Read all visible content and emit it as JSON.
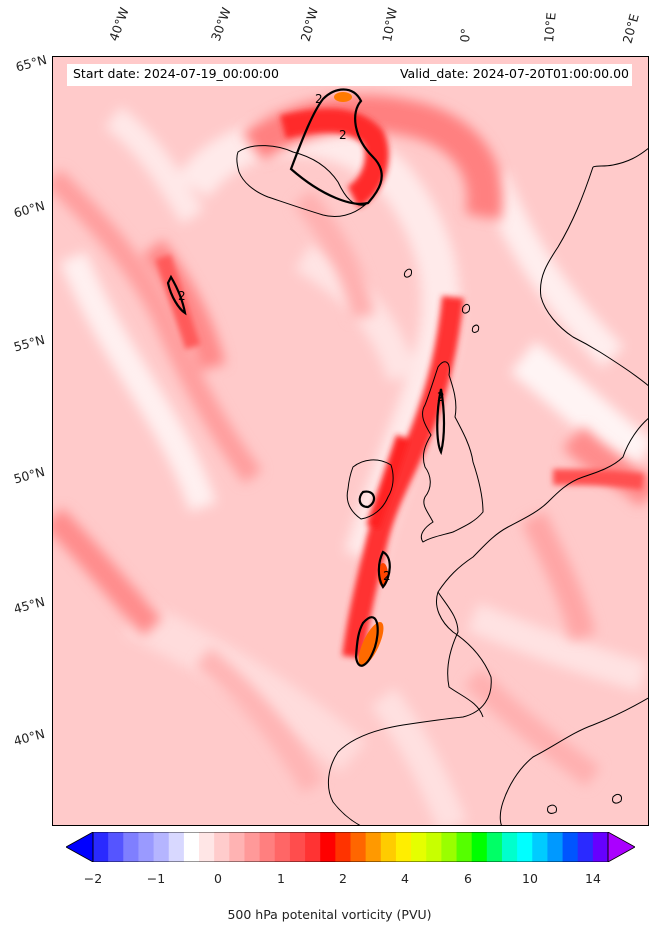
{
  "map": {
    "start_date": "Start date: 2024-07-19_00:00:00",
    "valid_date": "Valid_date: 2024-07-20T01:00:00.00",
    "lon_labels": [
      "40°W",
      "30°W",
      "20°W",
      "10°W",
      "0°",
      "10°E",
      "20°E"
    ],
    "lat_labels": [
      "65°N",
      "60°N",
      "55°N",
      "50°N",
      "45°N",
      "40°N"
    ],
    "contour_label": "2",
    "colorbar": {
      "label": "500 hPa potenital vorticity (PVU)",
      "tick_labels": [
        "−2",
        "−1",
        "0",
        "1",
        "2",
        "4",
        "6",
        "10",
        "14"
      ],
      "colors": [
        "#0000ff",
        "#2a2aff",
        "#5555ff",
        "#7f7fff",
        "#9a9aff",
        "#b5b5ff",
        "#d8d8ff",
        "#ffffff",
        "#ffe6e6",
        "#ffcccc",
        "#ffb3b3",
        "#ff9999",
        "#ff7f7f",
        "#ff6666",
        "#ff4d4d",
        "#ff3333",
        "#ff0000",
        "#ff3300",
        "#ff6600",
        "#ff9900",
        "#ffcc00",
        "#ffee00",
        "#e5ff00",
        "#c8ff00",
        "#99ff00",
        "#55ff00",
        "#00ff00",
        "#00ff66",
        "#00ffcc",
        "#00ffff",
        "#00ccff",
        "#0099ff",
        "#0055ff",
        "#2a2aff",
        "#6600ff",
        "#aa00ff"
      ]
    }
  }
}
